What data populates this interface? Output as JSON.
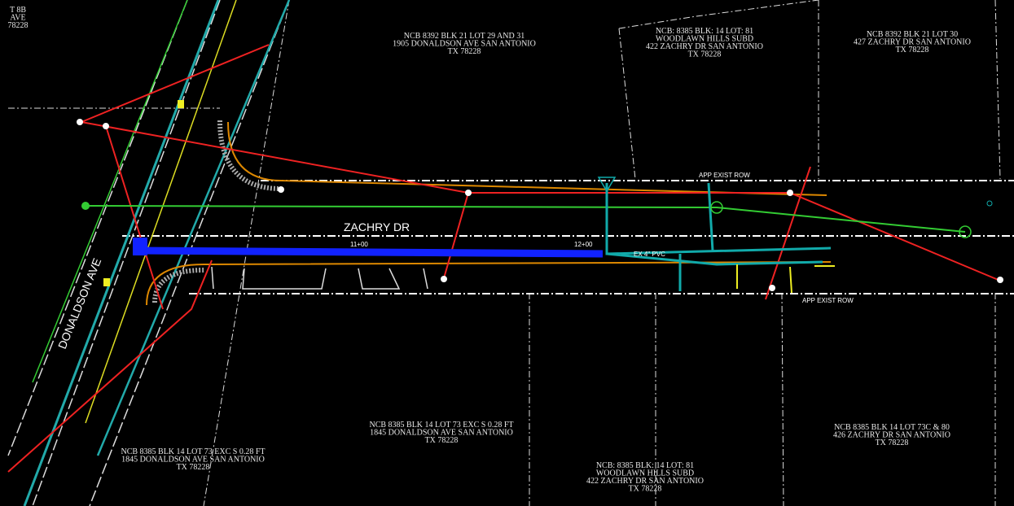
{
  "parcels": [
    {
      "lines": [
        "NCB 8392 BLK 21 LOT 29 AND 31",
        "1905 DONALDSON AVE SAN ANTONIO",
        "TX 78228"
      ]
    },
    {
      "lines": [
        "NCB: 8385 BLK: 14 LOT: 81",
        "WOODLAWN HILLS SUBD",
        "422 ZACHRY DR SAN ANTONIO",
        "TX 78228"
      ]
    },
    {
      "lines": [
        "NCB 8392 BLK 21 LOT 30",
        "427 ZACHRY DR SAN ANTONIO",
        "TX 78228"
      ]
    },
    {
      "lines": [
        "NCB 8385 BLK 14 LOT 73 EXC S 0.28 FT",
        "1845 DONALDSON AVE SAN ANTONIO",
        "TX 78228"
      ]
    },
    {
      "lines": [
        "NCB 8385 BLK 14 LOT 73 EXC S 0.28 FT",
        "1845 DONALDSON AVE SAN ANTONIO",
        "TX 78228"
      ]
    },
    {
      "lines": [
        "NCB: 8385 BLK: 14 LOT: 81",
        "WOODLAWN HILLS SUBD",
        "422 ZACHRY DR SAN ANTONIO",
        "TX 78228"
      ]
    },
    {
      "lines": [
        "NCB 8385 BLK 14 LOT 73C & 80",
        "426 ZACHRY DR SAN ANTONIO",
        "TX 78228"
      ]
    },
    {
      "lines": [
        "T 8B",
        "AVE",
        "78228"
      ]
    }
  ],
  "streets": [
    "ZACHRY DR",
    "DONALDSON AVE"
  ],
  "annotations": [
    "APP EXIST ROW",
    "APP EXIST ROW",
    "11+00",
    "12+00",
    "EX 4\" PVC"
  ]
}
